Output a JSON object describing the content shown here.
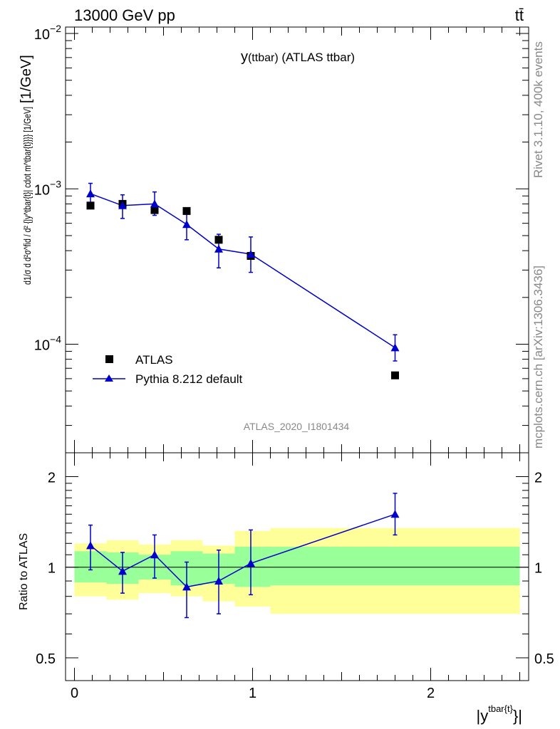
{
  "header": {
    "energy_label": "13000 GeV pp",
    "process_label": "tt̄"
  },
  "side_labels": {
    "rivet": "Rivet 3.1.10,  400k events",
    "source": "mcplots.cern.ch [arXiv:1306.3436]"
  },
  "chart_data": [
    {
      "type": "scatter",
      "panel": "main",
      "title": "y(ttbar) (ATLAS ttbar)",
      "title_main": "y",
      "title_sub": "(ttbar)",
      "title_rest": " (ATLAS ttbar)",
      "ylabel": "d1/σ d d²σ^fid / d² {|y^tbar{t}| cdot m^tbar{t}}}} [1/GeV]",
      "ylabel_text": "[1/GeV]",
      "yscale": "log",
      "ylim": [
        2e-05,
        0.011
      ],
      "xlim": [
        -0.05,
        2.55
      ],
      "yticks": [
        {
          "value": 0.0001,
          "base": "10",
          "exp": "−4"
        },
        {
          "value": 0.001,
          "base": "10",
          "exp": "−3"
        },
        {
          "value": 0.01,
          "base": "10",
          "exp": "−2"
        }
      ],
      "watermark": "ATLAS_2020_I1801434",
      "legend_position": "bottom-left",
      "series": [
        {
          "name": "ATLAS",
          "color": "#000000",
          "marker": "square",
          "x": [
            0.09,
            0.27,
            0.45,
            0.63,
            0.81,
            0.99,
            1.8
          ],
          "y": [
            0.00078,
            0.0008,
            0.00073,
            0.00072,
            0.00047,
            0.00037,
            6.3e-05
          ]
        },
        {
          "name": "Pythia 8.212 default",
          "color": "#0000cc",
          "marker": "triangle",
          "x": [
            0.09,
            0.27,
            0.45,
            0.63,
            0.81,
            0.99,
            1.8
          ],
          "y": [
            0.00093,
            0.00078,
            0.0008,
            0.00059,
            0.00041,
            0.00038,
            9.5e-05
          ],
          "err_low": [
            0.000155,
            0.000135,
            0.000125,
            0.00012,
            0.0001,
            9e-05,
            1.7e-05
          ],
          "err_high": [
            0.000155,
            0.000135,
            0.000155,
            0.00012,
            0.0001,
            0.00011,
            2e-05
          ]
        }
      ]
    },
    {
      "type": "line",
      "panel": "ratio",
      "ylabel": "Ratio to ATLAS",
      "xlabel": "|y^tbar{t}|",
      "xlabel_main": "|y",
      "xlabel_sup": "tbar{t}",
      "xlabel_end": "}|",
      "yscale": "log",
      "ylim": [
        0.42,
        2.4
      ],
      "xlim": [
        -0.05,
        2.55
      ],
      "xticks": [
        0,
        1,
        2
      ],
      "yticks": [
        0.5,
        1,
        2
      ],
      "reference_line": 1,
      "bins": [
        {
          "lo": 0.0,
          "hi": 0.18,
          "inner": [
            0.89,
            1.13
          ],
          "outer": [
            0.8,
            1.2
          ]
        },
        {
          "lo": 0.18,
          "hi": 0.36,
          "inner": [
            0.88,
            1.12
          ],
          "outer": [
            0.78,
            1.23
          ]
        },
        {
          "lo": 0.36,
          "hi": 0.54,
          "inner": [
            0.91,
            1.1
          ],
          "outer": [
            0.82,
            1.19
          ]
        },
        {
          "lo": 0.54,
          "hi": 0.72,
          "inner": [
            0.87,
            1.13
          ],
          "outer": [
            0.8,
            1.23
          ]
        },
        {
          "lo": 0.72,
          "hi": 0.9,
          "inner": [
            0.88,
            1.11
          ],
          "outer": [
            0.77,
            1.18
          ]
        },
        {
          "lo": 0.9,
          "hi": 1.1,
          "inner": [
            0.86,
            1.17
          ],
          "outer": [
            0.74,
            1.32
          ]
        },
        {
          "lo": 1.1,
          "hi": 2.5,
          "inner": [
            0.87,
            1.17
          ],
          "outer": [
            0.7,
            1.35
          ]
        }
      ],
      "series": [
        {
          "name": "Pythia 8.212 default",
          "color": "#0000cc",
          "x": [
            0.09,
            0.27,
            0.45,
            0.63,
            0.81,
            0.99,
            1.8
          ],
          "y": [
            1.18,
            0.97,
            1.1,
            0.86,
            0.9,
            1.03,
            1.5
          ],
          "err_low": [
            0.2,
            0.15,
            0.18,
            0.18,
            0.2,
            0.22,
            0.22
          ],
          "err_high": [
            0.2,
            0.15,
            0.18,
            0.18,
            0.24,
            0.3,
            0.26
          ]
        }
      ]
    }
  ],
  "colors": {
    "band_inner": "#99ff99",
    "band_outer": "#ffff99",
    "mc": "#0000cc",
    "data": "#000000"
  }
}
